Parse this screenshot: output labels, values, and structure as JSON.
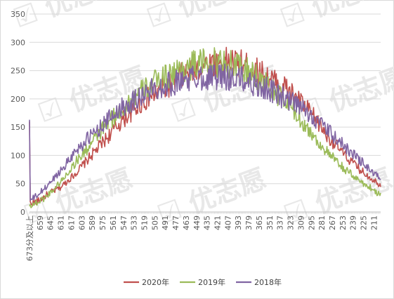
{
  "chart_data": {
    "type": "line",
    "title": "",
    "xlabel": "",
    "ylabel": "",
    "ylim": [
      0,
      350
    ],
    "y_ticks": [
      0,
      50,
      100,
      150,
      200,
      250,
      300,
      350
    ],
    "grid": "horizontal",
    "legend": "bottom",
    "x_direction": "descending",
    "x_first_label": "673分及以上",
    "x_start_score": 672,
    "x_end_score": 202,
    "x_tick_labels": [
      "673分及以上",
      "659",
      "645",
      "631",
      "617",
      "603",
      "589",
      "575",
      "561",
      "547",
      "533",
      "519",
      "505",
      "491",
      "477",
      "463",
      "449",
      "435",
      "421",
      "407",
      "393",
      "379",
      "365",
      "351",
      "337",
      "323",
      "309",
      "295",
      "281",
      "267",
      "253",
      "239",
      "225",
      "211"
    ],
    "series": [
      {
        "name": "2020年",
        "color": "#C0504D",
        "anchors": [
          [
            673,
            160
          ],
          [
            672,
            15
          ],
          [
            660,
            20
          ],
          [
            650,
            30
          ],
          [
            630,
            45
          ],
          [
            610,
            70
          ],
          [
            590,
            100
          ],
          [
            570,
            130
          ],
          [
            550,
            160
          ],
          [
            530,
            185
          ],
          [
            510,
            205
          ],
          [
            490,
            220
          ],
          [
            470,
            240
          ],
          [
            450,
            255
          ],
          [
            430,
            262
          ],
          [
            410,
            265
          ],
          [
            390,
            262
          ],
          [
            370,
            250
          ],
          [
            350,
            235
          ],
          [
            330,
            220
          ],
          [
            310,
            195
          ],
          [
            290,
            165
          ],
          [
            270,
            130
          ],
          [
            250,
            100
          ],
          [
            230,
            75
          ],
          [
            215,
            60
          ],
          [
            202,
            48
          ]
        ]
      },
      {
        "name": "2019年",
        "color": "#9BBB59",
        "anchors": [
          [
            673,
            10
          ],
          [
            672,
            12
          ],
          [
            660,
            18
          ],
          [
            650,
            28
          ],
          [
            630,
            55
          ],
          [
            610,
            90
          ],
          [
            590,
            120
          ],
          [
            570,
            155
          ],
          [
            550,
            180
          ],
          [
            530,
            205
          ],
          [
            510,
            225
          ],
          [
            490,
            240
          ],
          [
            470,
            252
          ],
          [
            450,
            262
          ],
          [
            430,
            265
          ],
          [
            410,
            262
          ],
          [
            390,
            255
          ],
          [
            370,
            240
          ],
          [
            350,
            220
          ],
          [
            330,
            195
          ],
          [
            310,
            165
          ],
          [
            290,
            130
          ],
          [
            270,
            100
          ],
          [
            250,
            75
          ],
          [
            230,
            55
          ],
          [
            215,
            42
          ],
          [
            202,
            30
          ]
        ]
      },
      {
        "name": "2018年",
        "color": "#8064A2",
        "anchors": [
          [
            673,
            163
          ],
          [
            672,
            20
          ],
          [
            660,
            32
          ],
          [
            650,
            45
          ],
          [
            630,
            75
          ],
          [
            610,
            110
          ],
          [
            590,
            135
          ],
          [
            570,
            160
          ],
          [
            550,
            185
          ],
          [
            530,
            200
          ],
          [
            510,
            215
          ],
          [
            490,
            225
          ],
          [
            470,
            232
          ],
          [
            450,
            238
          ],
          [
            430,
            240
          ],
          [
            410,
            238
          ],
          [
            390,
            235
          ],
          [
            370,
            225
          ],
          [
            350,
            215
          ],
          [
            330,
            200
          ],
          [
            310,
            185
          ],
          [
            290,
            165
          ],
          [
            270,
            140
          ],
          [
            250,
            115
          ],
          [
            230,
            92
          ],
          [
            215,
            72
          ],
          [
            202,
            58
          ]
        ]
      }
    ]
  },
  "watermark": {
    "text": "优志愿",
    "color": "#e8e8e8"
  }
}
